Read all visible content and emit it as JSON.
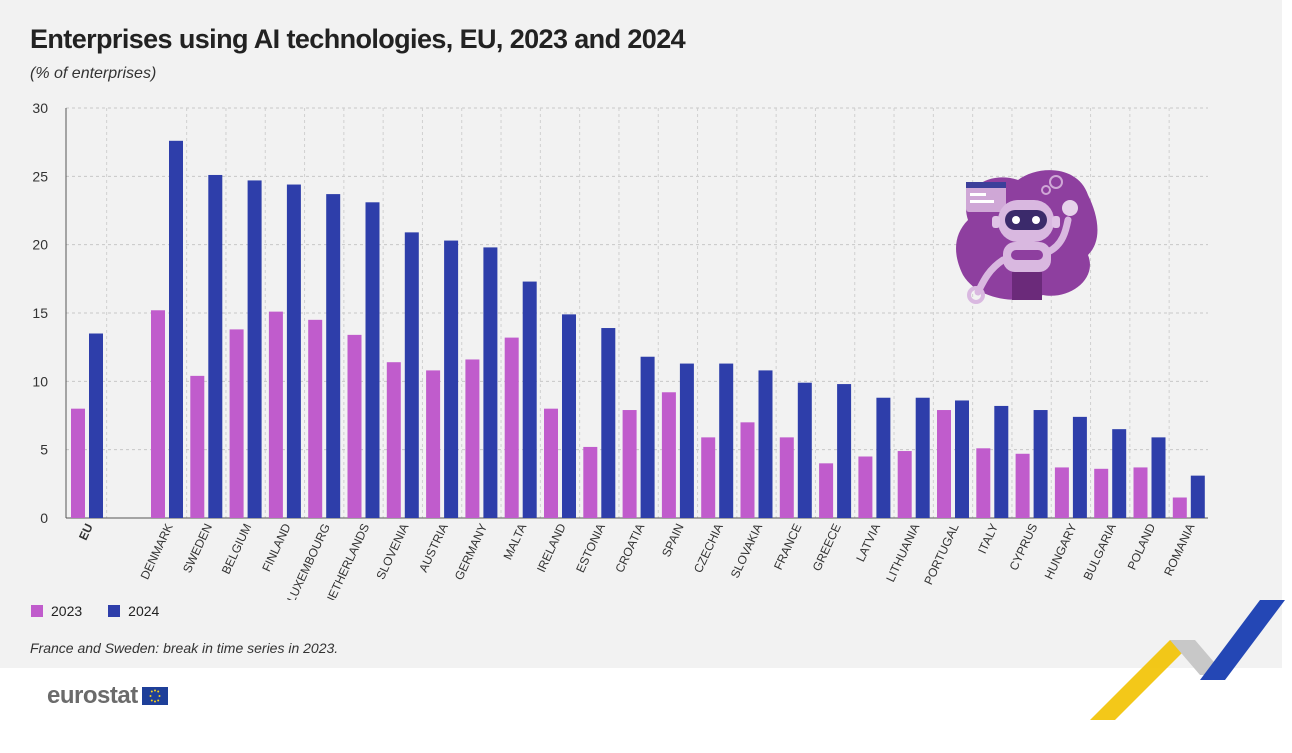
{
  "title": "Enterprises using AI technologies, EU, 2023 and 2024",
  "subtitle": "(% of enterprises)",
  "note": "France and Sweden: break in time series in 2023.",
  "logo_text": "eurostat",
  "colors": {
    "2023": "#c05ccc",
    "2024": "#2e3eaa",
    "panel": "#f2f2f2"
  },
  "legend": [
    {
      "label": "2023",
      "color": "#c05ccc"
    },
    {
      "label": "2024",
      "color": "#2e3eaa"
    }
  ],
  "chart_data": {
    "type": "bar",
    "title": "Enterprises using AI technologies, EU, 2023 and 2024",
    "subtitle": "(% of enterprises)",
    "ylim": [
      0,
      30
    ],
    "yticks": [
      0,
      5,
      10,
      15,
      20,
      25,
      30
    ],
    "grid": true,
    "legend_position": "bottom-left",
    "categories": [
      "EU",
      "DENMARK",
      "SWEDEN",
      "BELGIUM",
      "FINLAND",
      "LUXEMBOURG",
      "NETHERLANDS",
      "SLOVENIA",
      "AUSTRIA",
      "GERMANY",
      "MALTA",
      "IRELAND",
      "ESTONIA",
      "CROATIA",
      "SPAIN",
      "CZECHIA",
      "SLOVAKIA",
      "FRANCE",
      "GREECE",
      "LATVIA",
      "LITHUANIA",
      "PORTUGAL",
      "ITALY",
      "CYPRUS",
      "HUNGARY",
      "BULGARIA",
      "POLAND",
      "ROMANIA"
    ],
    "series": [
      {
        "name": "2023",
        "values": [
          8.0,
          15.2,
          10.4,
          13.8,
          15.1,
          14.5,
          13.4,
          11.4,
          10.8,
          11.6,
          13.2,
          8.0,
          5.2,
          7.9,
          9.2,
          5.9,
          7.0,
          5.9,
          4.0,
          4.5,
          4.9,
          7.9,
          5.1,
          4.7,
          3.7,
          3.6,
          3.7,
          1.5
        ]
      },
      {
        "name": "2024",
        "values": [
          13.5,
          27.6,
          25.1,
          24.7,
          24.4,
          23.7,
          23.1,
          20.9,
          20.3,
          19.8,
          17.3,
          14.9,
          13.9,
          11.8,
          11.3,
          11.3,
          10.8,
          9.9,
          9.8,
          8.8,
          8.8,
          8.6,
          8.2,
          7.9,
          7.4,
          6.5,
          5.9,
          3.1
        ]
      }
    ]
  }
}
